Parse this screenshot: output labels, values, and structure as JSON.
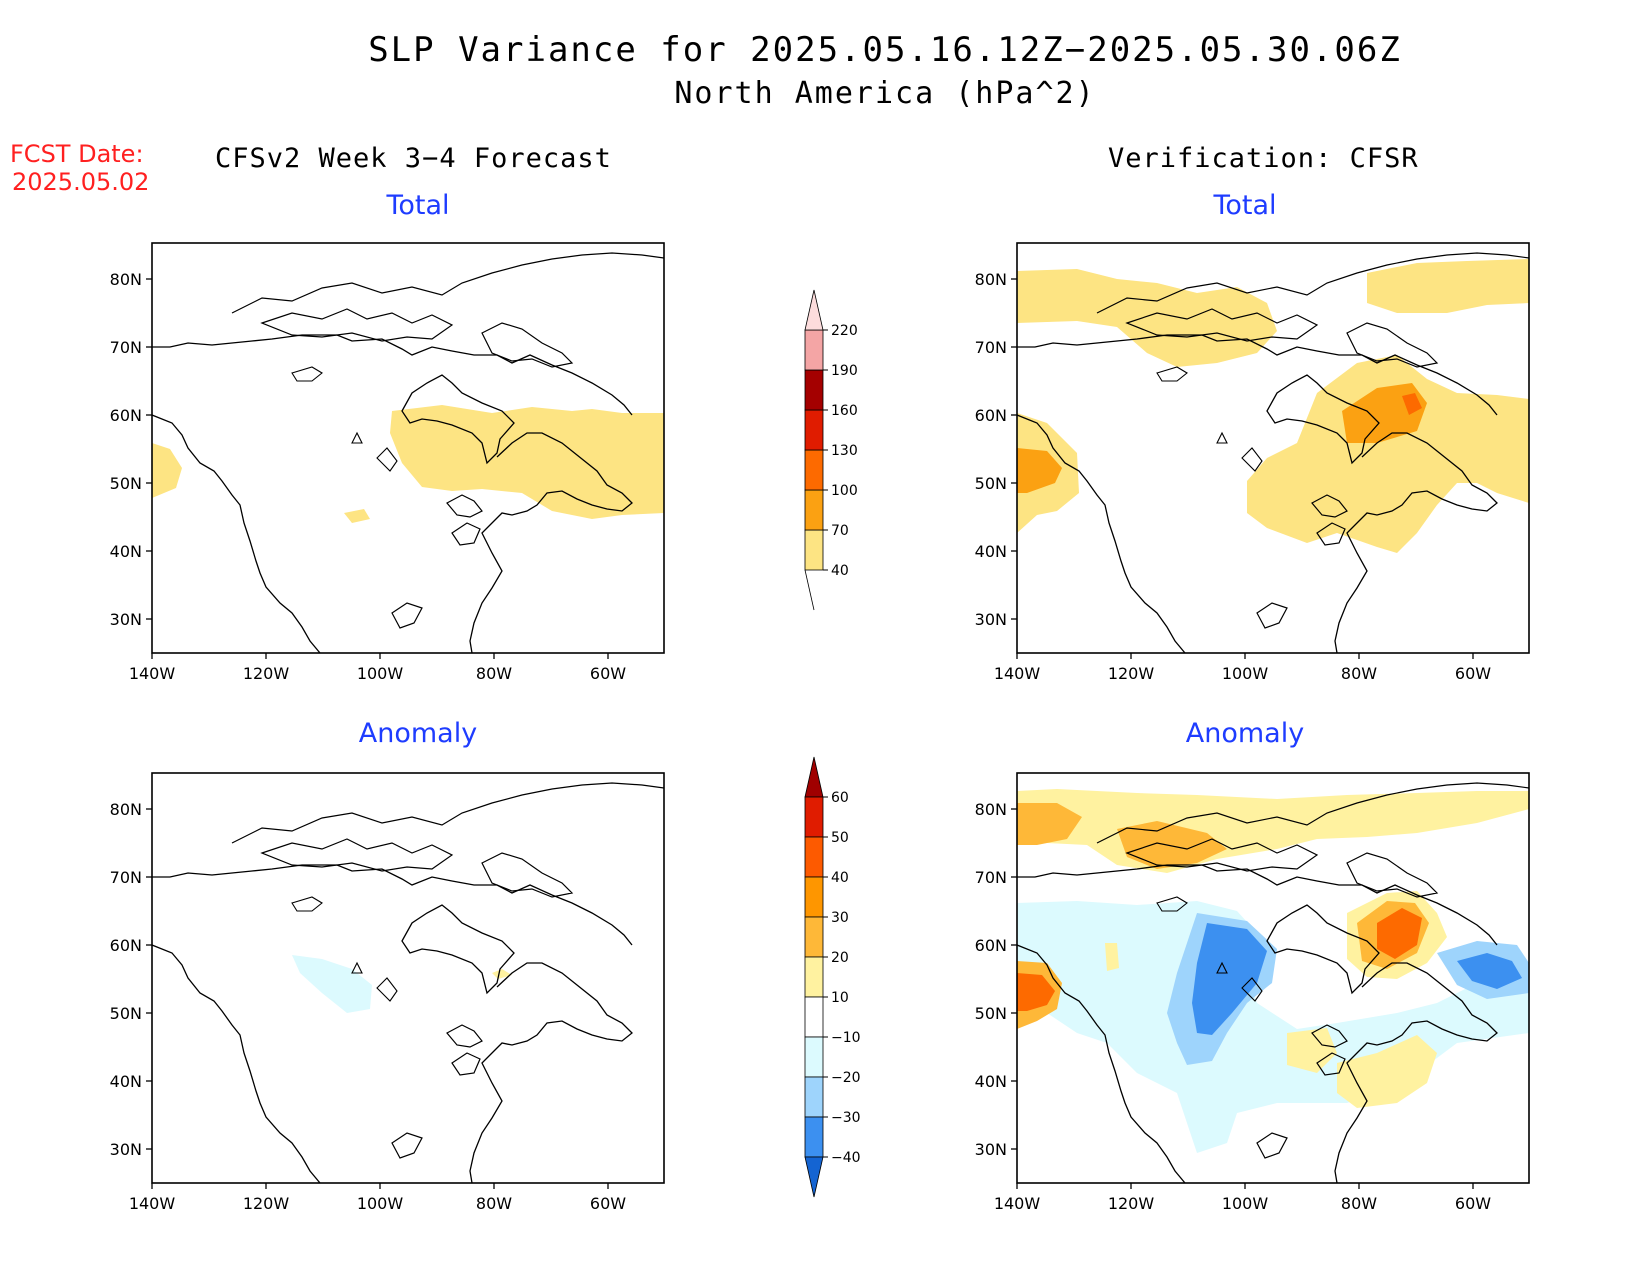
{
  "title": {
    "line1": "SLP Variance for 2025.05.16.12Z−2025.05.30.06Z",
    "line2": "North America (hPa^2)"
  },
  "forecast_date": {
    "label": "FCST Date:",
    "value": "2025.05.02"
  },
  "left_column": {
    "heading": "CFSv2 Week 3−4 Forecast"
  },
  "right_column": {
    "heading": "Verification: CFSR"
  },
  "panels": [
    {
      "id": "fcst-total",
      "title": "Total"
    },
    {
      "id": "verif-total",
      "title": "Total"
    },
    {
      "id": "fcst-anomaly",
      "title": "Anomaly"
    },
    {
      "id": "verif-anomaly",
      "title": "Anomaly"
    }
  ],
  "axes": {
    "lon_labels": [
      "140W",
      "120W",
      "100W",
      "80W",
      "60W"
    ],
    "lat_labels": [
      "80N",
      "70N",
      "60N",
      "50N",
      "40N",
      "30N"
    ]
  },
  "colorbars": {
    "total": {
      "levels": [
        "40",
        "70",
        "100",
        "130",
        "160",
        "190",
        "220"
      ],
      "colors": [
        "#fde483",
        "#fba112",
        "#fd6a00",
        "#e01c00",
        "#a40000",
        "#f4a5a5",
        "#fcdcdc"
      ]
    },
    "anomaly": {
      "levels": [
        "60",
        "50",
        "40",
        "30",
        "20",
        "10",
        "−10",
        "−20",
        "−30",
        "−40"
      ],
      "colors_top_to_bottom": [
        "#a00000",
        "#e01c00",
        "#fd5a00",
        "#fe9600",
        "#feb838",
        "#fff2a0",
        "#ffffff",
        "#dcfafe",
        "#9ed4fc",
        "#3c90f0",
        "#1464d2"
      ]
    }
  }
}
